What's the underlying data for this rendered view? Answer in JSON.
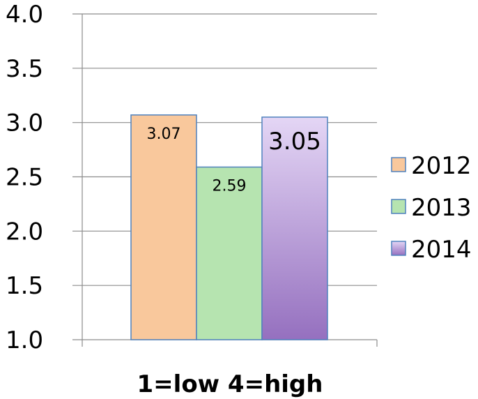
{
  "chart_data": {
    "type": "bar",
    "xlabel": "1=low 4=high",
    "ylim": [
      1.0,
      4.0
    ],
    "yticks": [
      "4.0",
      "3.5",
      "3.0",
      "2.5",
      "2.0",
      "1.5",
      "1.0"
    ],
    "grid": true,
    "legend_position": "right",
    "series": [
      {
        "name": "2012",
        "value": 3.07,
        "label": "3.07",
        "color": "#f9c89c"
      },
      {
        "name": "2013",
        "value": 2.59,
        "label": "2.59",
        "color": "#b6e4b0"
      },
      {
        "name": "2014",
        "value": 3.05,
        "label": "3.05",
        "color": "#a98bcc"
      }
    ]
  }
}
